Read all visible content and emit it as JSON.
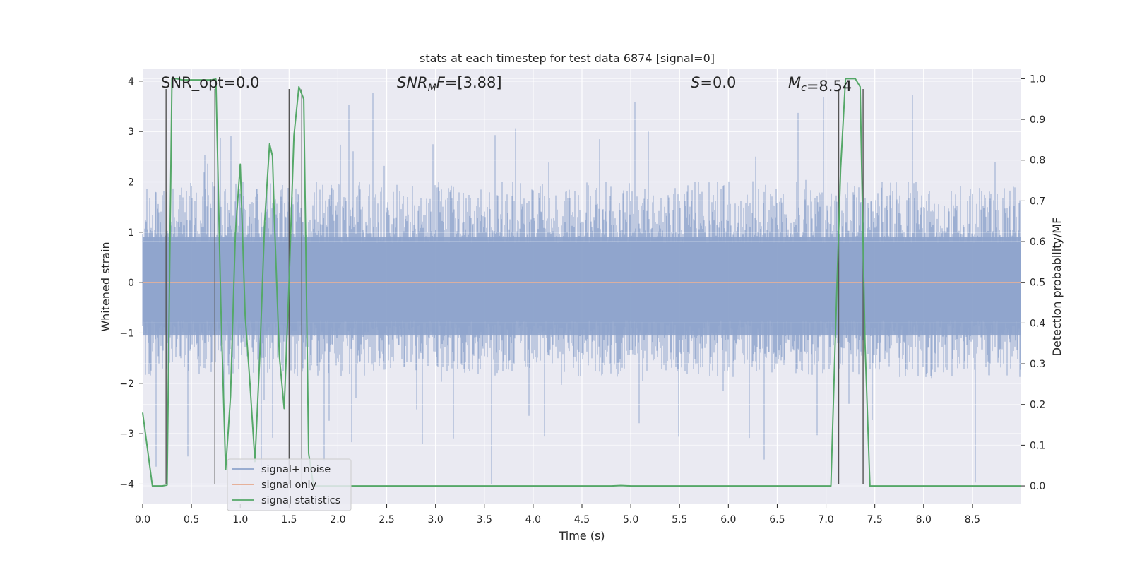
{
  "chart_data": {
    "type": "line",
    "title": "stats at each timestep for test data 6874 [signal=0]",
    "xlabel": "Time (s)",
    "ylabel": "Whitened strain",
    "y2label": "Detection probability/MF",
    "xlim": [
      0,
      9.0
    ],
    "ylim": [
      -4.4,
      4.25
    ],
    "y2lim": [
      -0.045,
      1.025
    ],
    "x_ticks": [
      0.0,
      0.5,
      1.0,
      1.5,
      2.0,
      2.5,
      3.0,
      3.5,
      4.0,
      4.5,
      5.0,
      5.5,
      6.0,
      6.5,
      7.0,
      7.5,
      8.0,
      8.5
    ],
    "x_tick_labels": [
      "0.0",
      "0.5",
      "1.0",
      "1.5",
      "2.0",
      "2.5",
      "3.0",
      "3.5",
      "4.0",
      "4.5",
      "5.0",
      "5.5",
      "6.0",
      "6.5",
      "7.0",
      "7.5",
      "8.0",
      "8.5"
    ],
    "y_ticks": [
      -4,
      -3,
      -2,
      -1,
      0,
      1,
      2,
      3,
      4
    ],
    "y_tick_labels": [
      "−4",
      "−3",
      "−2",
      "−1",
      "0",
      "1",
      "2",
      "3",
      "4"
    ],
    "y2_ticks": [
      0.0,
      0.1,
      0.2,
      0.3,
      0.4,
      0.5,
      0.6,
      0.7,
      0.8,
      0.9,
      1.0
    ],
    "y2_tick_labels": [
      "0.0",
      "0.1",
      "0.2",
      "0.3",
      "0.4",
      "0.5",
      "0.6",
      "0.7",
      "0.8",
      "0.9",
      "1.0"
    ],
    "grid": true,
    "legend_position": "lower-left",
    "annotations": [
      {
        "prefix": "SNR_opt",
        "sub": "",
        "suffix": "",
        "value": "=0.0",
        "italic": false
      },
      {
        "prefix": "SNR",
        "sub": "M",
        "suffix": "F",
        "value": "=[3.88]",
        "italic": true
      },
      {
        "prefix": "S",
        "sub": "",
        "suffix": "",
        "value": "=0.0",
        "italic": true
      },
      {
        "prefix": "M",
        "sub": "c",
        "suffix": "",
        "value": "=8.54",
        "italic": true
      }
    ],
    "vertical_markers_x": [
      0.24,
      0.74,
      1.5,
      1.63,
      7.13,
      7.38
    ],
    "noise_band": {
      "core_low": -1.5,
      "core_high": 1.75,
      "peak_low": -4.0,
      "peak_high": 3.9
    },
    "series": [
      {
        "name": "signal+ noise",
        "color": "#8fa4cc",
        "axis": "left",
        "style": "noise"
      },
      {
        "name": "signal only",
        "color": "#e5a98d",
        "axis": "left",
        "x": [
          0.0,
          9.0
        ],
        "y": [
          0.0,
          0.0
        ]
      },
      {
        "name": "signal statistics",
        "color": "#55a868",
        "axis": "right",
        "x": [
          0.0,
          0.05,
          0.1,
          0.15,
          0.2,
          0.25,
          0.3,
          0.35,
          0.4,
          0.45,
          0.5,
          0.55,
          0.6,
          0.65,
          0.7,
          0.75,
          0.8,
          0.85,
          0.9,
          0.95,
          1.0,
          1.05,
          1.1,
          1.15,
          1.2,
          1.25,
          1.3,
          1.33,
          1.35,
          1.4,
          1.45,
          1.5,
          1.55,
          1.6,
          1.65,
          1.7,
          1.75,
          1.8,
          2.0,
          3.0,
          4.0,
          4.5,
          4.8,
          4.9,
          5.0,
          6.0,
          7.0,
          7.05,
          7.1,
          7.15,
          7.2,
          7.25,
          7.3,
          7.35,
          7.4,
          7.45,
          7.5,
          8.0,
          9.0
        ],
        "y": [
          0.18,
          0.09,
          0.0,
          0.0,
          0.0,
          0.002,
          1.0,
          1.0,
          0.997,
          0.997,
          0.997,
          0.997,
          0.997,
          0.997,
          0.997,
          0.999,
          0.45,
          0.04,
          0.22,
          0.62,
          0.79,
          0.42,
          0.25,
          0.06,
          0.32,
          0.65,
          0.84,
          0.81,
          0.65,
          0.32,
          0.19,
          0.5,
          0.86,
          0.98,
          0.95,
          0.08,
          0.0,
          0.0,
          0.0,
          0.0,
          0.0,
          0.0,
          0.0,
          0.001,
          0.0,
          0.0,
          0.0,
          0.0,
          0.4,
          0.78,
          1.0,
          1.0,
          1.0,
          0.98,
          0.35,
          0.0,
          0.0,
          0.0,
          0.0
        ]
      }
    ]
  }
}
